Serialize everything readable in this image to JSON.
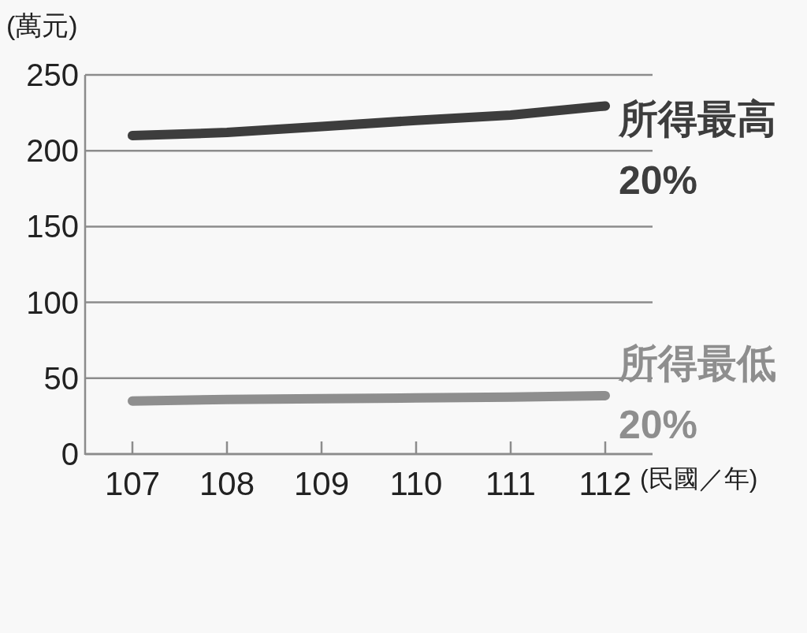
{
  "chart_data": {
    "type": "line",
    "ylabel": "(萬元)",
    "xlabel": "(民國／年)",
    "x": [
      107,
      108,
      109,
      110,
      111,
      112
    ],
    "xlim": [
      106.5,
      112.5
    ],
    "xticks": [
      107,
      108,
      109,
      110,
      111,
      112
    ],
    "ylim": [
      0,
      250
    ],
    "yticks": [
      0,
      50,
      100,
      150,
      200,
      250
    ],
    "grid": "y",
    "legend": "right",
    "marker": "none",
    "line_style": "solid",
    "series": [
      {
        "name": "所得最高\n20%",
        "color": "#3d3d3d",
        "values": [
          210,
          212,
          216,
          220,
          223.5,
          229.5
        ]
      },
      {
        "name": "所得最低\n20%",
        "color": "#8e8e8e",
        "values": [
          35,
          36,
          36.5,
          37,
          37.5,
          38.5
        ]
      }
    ]
  }
}
